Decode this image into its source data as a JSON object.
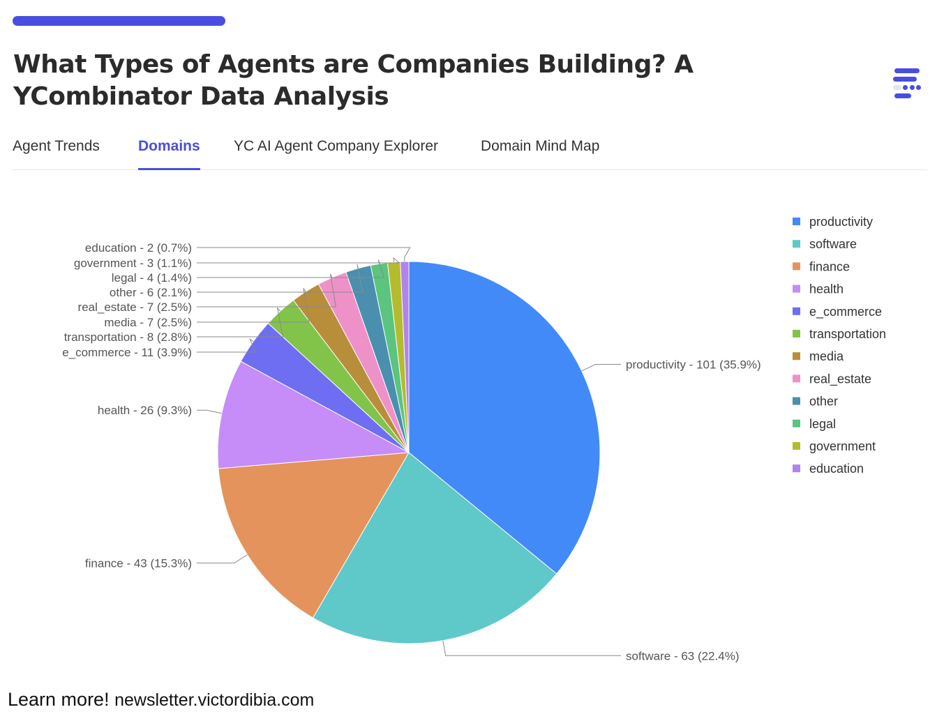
{
  "header": {
    "title": "What Types of Agents are Companies Building? A YCombinator Data Analysis"
  },
  "tabs": [
    {
      "label": "Agent Trends",
      "active": false
    },
    {
      "label": "Domains",
      "active": true
    },
    {
      "label": "YC AI Agent Company Explorer",
      "active": false
    },
    {
      "label": "Domain Mind Map",
      "active": false
    }
  ],
  "footer": {
    "prefix": "Learn more!",
    "url": "newsletter.victordibia.com"
  },
  "colors": {
    "accent": "#4a4ee0"
  },
  "chart_data": {
    "type": "pie",
    "legend_position": "right",
    "slices": [
      {
        "label": "productivity",
        "value": 101,
        "percent": 35.9,
        "color": "#428af7",
        "label_text": "productivity - 101 (35.9%)"
      },
      {
        "label": "software",
        "value": 63,
        "percent": 22.4,
        "color": "#5fc8c9",
        "label_text": "software - 63 (22.4%)"
      },
      {
        "label": "finance",
        "value": 43,
        "percent": 15.3,
        "color": "#e4935c",
        "label_text": "finance - 43 (15.3%)"
      },
      {
        "label": "health",
        "value": 26,
        "percent": 9.3,
        "color": "#c68cf8",
        "label_text": "health - 26 (9.3%)"
      },
      {
        "label": "e_commerce",
        "value": 11,
        "percent": 3.9,
        "color": "#6e6ef3",
        "label_text": "e_commerce - 11 (3.9%)"
      },
      {
        "label": "transportation",
        "value": 8,
        "percent": 2.8,
        "color": "#82c44a",
        "label_text": "transportation - 8 (2.8%)"
      },
      {
        "label": "media",
        "value": 7,
        "percent": 2.5,
        "color": "#b98e3a",
        "label_text": "media - 7 (2.5%)"
      },
      {
        "label": "real_estate",
        "value": 7,
        "percent": 2.5,
        "color": "#ee91c9",
        "label_text": "real_estate - 7 (2.5%)"
      },
      {
        "label": "other",
        "value": 6,
        "percent": 2.1,
        "color": "#4a8fae",
        "label_text": "other - 6 (2.1%)"
      },
      {
        "label": "legal",
        "value": 4,
        "percent": 1.4,
        "color": "#5bc47f",
        "label_text": "legal - 4 (1.4%)"
      },
      {
        "label": "government",
        "value": 3,
        "percent": 1.1,
        "color": "#b5bb2e",
        "label_text": "government - 3 (1.1%)"
      },
      {
        "label": "education",
        "value": 2,
        "percent": 0.7,
        "color": "#b083ed",
        "label_text": "education - 2 (0.7%)"
      }
    ]
  }
}
